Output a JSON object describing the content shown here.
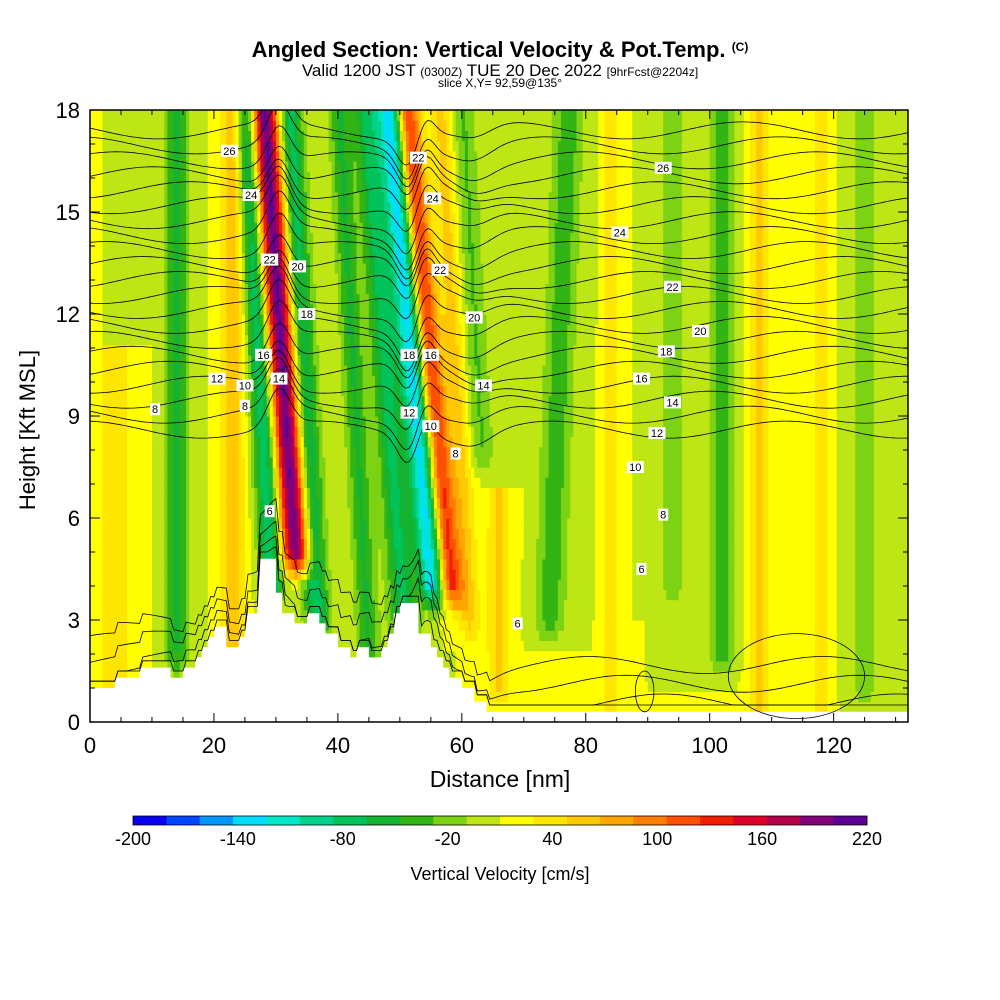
{
  "header": {
    "title": "Angled Section: Vertical Velocity & Pot.Temp.",
    "title_suffix": "(C)",
    "valid_a": "Valid 1200 JST",
    "valid_b": "(0300Z)",
    "valid_c": "TUE 20 Dec 2022",
    "valid_d": "[9hrFcst@2204z]",
    "slice": "slice X,Y= 92,59@135°"
  },
  "chart_data": {
    "type": "heatmap",
    "xlabel": "Distance [nm]",
    "ylabel": "Height [Kft MSL]",
    "xlim": [
      0,
      132
    ],
    "ylim": [
      0,
      18
    ],
    "x_ticks": [
      0,
      20,
      40,
      60,
      80,
      100,
      120
    ],
    "y_ticks": [
      0,
      3,
      6,
      9,
      12,
      15,
      18
    ],
    "grid": false,
    "background_field": {
      "name": "Vertical Velocity [cm/s]",
      "base_value_cm_s": 10,
      "updraft_bands": [
        {
          "x": 30.5,
          "half_width_nm": 2.3,
          "peak_cm_s": 200,
          "z_top_kft": 18,
          "z_bottom_kft": 5,
          "tilt_nm_per_kft": -0.4
        },
        {
          "x": 54.0,
          "half_width_nm": 2.0,
          "peak_cm_s": 150,
          "z_top_kft": 18,
          "z_bottom_kft": 4,
          "tilt_nm_per_kft": -0.5
        },
        {
          "x": 23.0,
          "half_width_nm": 1.8,
          "peak_cm_s": 55,
          "z_top_kft": 18,
          "z_bottom_kft": 2,
          "tilt_nm_per_kft": 0
        },
        {
          "x": 58.5,
          "half_width_nm": 1.8,
          "peak_cm_s": 45,
          "z_top_kft": 18,
          "z_bottom_kft": 3,
          "tilt_nm_per_kft": -0.3
        },
        {
          "x": 66.0,
          "half_width_nm": 2.0,
          "peak_cm_s": 40,
          "z_top_kft": 6,
          "z_bottom_kft": 1,
          "tilt_nm_per_kft": 0
        },
        {
          "x": 84.0,
          "half_width_nm": 1.0,
          "peak_cm_s": 35,
          "z_top_kft": 18,
          "z_bottom_kft": 0,
          "tilt_nm_per_kft": 0
        },
        {
          "x": 108.0,
          "half_width_nm": 1.6,
          "peak_cm_s": 40,
          "z_top_kft": 18,
          "z_bottom_kft": 0,
          "tilt_nm_per_kft": 0
        },
        {
          "x": 118.0,
          "half_width_nm": 1.2,
          "peak_cm_s": 35,
          "z_top_kft": 18,
          "z_bottom_kft": 0,
          "tilt_nm_per_kft": 0
        },
        {
          "x": 4.0,
          "half_width_nm": 3.0,
          "peak_cm_s": 30,
          "z_top_kft": 10,
          "z_bottom_kft": 1,
          "tilt_nm_per_kft": 0
        }
      ],
      "downdraft_bands": [
        {
          "x": 51.5,
          "half_width_nm": 2.3,
          "peak_cm_s": -160,
          "z_top_kft": 18,
          "z_bottom_kft": 4,
          "tilt_nm_per_kft": -0.5
        },
        {
          "x": 27.0,
          "half_width_nm": 1.8,
          "peak_cm_s": -100,
          "z_top_kft": 18,
          "z_bottom_kft": 4,
          "tilt_nm_per_kft": -0.3
        },
        {
          "x": 34.0,
          "half_width_nm": 2.0,
          "peak_cm_s": -90,
          "z_top_kft": 18,
          "z_bottom_kft": 3,
          "tilt_nm_per_kft": -0.3
        },
        {
          "x": 47.0,
          "half_width_nm": 2.2,
          "peak_cm_s": -80,
          "z_top_kft": 18,
          "z_bottom_kft": 2,
          "tilt_nm_per_kft": -0.4
        },
        {
          "x": 14.0,
          "half_width_nm": 2.0,
          "peak_cm_s": -60,
          "z_top_kft": 18,
          "z_bottom_kft": 2,
          "tilt_nm_per_kft": 0
        },
        {
          "x": 42.0,
          "half_width_nm": 1.8,
          "peak_cm_s": -60,
          "z_top_kft": 18,
          "z_bottom_kft": 2,
          "tilt_nm_per_kft": -0.3
        },
        {
          "x": 76.0,
          "half_width_nm": 2.5,
          "peak_cm_s": -50,
          "z_top_kft": 18,
          "z_bottom_kft": 3,
          "tilt_nm_per_kft": 0.2
        },
        {
          "x": 102.0,
          "half_width_nm": 2.2,
          "peak_cm_s": -50,
          "z_top_kft": 18,
          "z_bottom_kft": 2,
          "tilt_nm_per_kft": 0
        },
        {
          "x": 62.0,
          "half_width_nm": 2.0,
          "peak_cm_s": -40,
          "z_top_kft": 18,
          "z_bottom_kft": 8,
          "tilt_nm_per_kft": -0.3
        },
        {
          "x": 94.0,
          "half_width_nm": 2.0,
          "peak_cm_s": -35,
          "z_top_kft": 18,
          "z_bottom_kft": 4,
          "tilt_nm_per_kft": 0
        },
        {
          "x": 125.0,
          "half_width_nm": 2.0,
          "peak_cm_s": -30,
          "z_top_kft": 18,
          "z_bottom_kft": 1,
          "tilt_nm_per_kft": 0
        }
      ]
    },
    "isotherms_c": {
      "levels": [
        8,
        10,
        12,
        14,
        16,
        18,
        20,
        22,
        24,
        26
      ],
      "note": "sample potential temperature contours (every 1 C drawn, labeled every 2 C)",
      "labels": [
        {
          "text": "26",
          "x": 22.5,
          "y": 16.8
        },
        {
          "text": "26",
          "x": 92.5,
          "y": 16.3
        },
        {
          "text": "24",
          "x": 26.0,
          "y": 15.5
        },
        {
          "text": "24",
          "x": 55.3,
          "y": 15.4
        },
        {
          "text": "24",
          "x": 85.5,
          "y": 14.4
        },
        {
          "text": "22",
          "x": 29.0,
          "y": 13.6
        },
        {
          "text": "22",
          "x": 53.0,
          "y": 16.6
        },
        {
          "text": "22",
          "x": 56.5,
          "y": 13.3
        },
        {
          "text": "22",
          "x": 94.0,
          "y": 12.8
        },
        {
          "text": "20",
          "x": 33.5,
          "y": 13.4
        },
        {
          "text": "20",
          "x": 62.0,
          "y": 11.9
        },
        {
          "text": "20",
          "x": 98.5,
          "y": 11.5
        },
        {
          "text": "18",
          "x": 35.0,
          "y": 12.0
        },
        {
          "text": "18",
          "x": 51.5,
          "y": 10.8
        },
        {
          "text": "18",
          "x": 93.0,
          "y": 10.9
        },
        {
          "text": "16",
          "x": 28.0,
          "y": 10.8
        },
        {
          "text": "16",
          "x": 55.0,
          "y": 10.8
        },
        {
          "text": "16",
          "x": 89.0,
          "y": 10.1
        },
        {
          "text": "14",
          "x": 30.5,
          "y": 10.1
        },
        {
          "text": "14",
          "x": 63.5,
          "y": 9.9
        },
        {
          "text": "14",
          "x": 94.0,
          "y": 9.4
        },
        {
          "text": "12",
          "x": 20.5,
          "y": 10.1
        },
        {
          "text": "12",
          "x": 51.5,
          "y": 9.1
        },
        {
          "text": "12",
          "x": 91.5,
          "y": 8.5
        },
        {
          "text": "10",
          "x": 25.0,
          "y": 9.9
        },
        {
          "text": "10",
          "x": 55.0,
          "y": 8.7
        },
        {
          "text": "10",
          "x": 88.0,
          "y": 7.5
        },
        {
          "text": "8",
          "x": 10.5,
          "y": 9.2
        },
        {
          "text": "8",
          "x": 25.0,
          "y": 9.3
        },
        {
          "text": "8",
          "x": 59.0,
          "y": 7.9
        },
        {
          "text": "8",
          "x": 92.5,
          "y": 6.1
        },
        {
          "text": "6",
          "x": 29.0,
          "y": 6.2
        },
        {
          "text": "6",
          "x": 89.0,
          "y": 4.5
        },
        {
          "text": "6",
          "x": 69.0,
          "y": 2.9
        }
      ]
    },
    "terrain_kft": {
      "x": [
        0,
        4,
        4,
        8,
        8,
        13,
        13,
        15,
        15,
        17,
        17,
        18,
        18,
        19,
        19,
        20,
        20,
        22,
        22,
        24,
        24,
        25,
        25,
        27,
        27,
        28,
        28,
        30,
        30,
        31,
        31,
        33,
        33,
        35,
        35,
        37,
        37,
        38,
        38,
        40,
        40,
        42,
        42,
        43,
        43,
        45,
        45,
        47,
        47,
        48,
        48,
        49,
        49,
        50,
        50,
        53,
        53,
        55,
        55,
        56,
        56,
        57,
        57,
        58,
        58,
        60,
        60,
        62,
        62,
        64,
        64,
        66,
        66,
        68,
        68,
        70,
        70,
        132
      ],
      "z": [
        1.0,
        1.0,
        1.3,
        1.3,
        1.6,
        1.6,
        1.3,
        1.3,
        1.6,
        1.6,
        1.9,
        1.9,
        2.2,
        2.2,
        2.5,
        2.5,
        2.8,
        2.8,
        2.2,
        2.2,
        2.5,
        2.5,
        3.2,
        3.2,
        4.8,
        4.8,
        4.8,
        4.8,
        3.8,
        3.8,
        3.2,
        3.2,
        2.9,
        2.9,
        3.2,
        3.2,
        2.9,
        2.9,
        2.6,
        2.6,
        2.2,
        2.2,
        1.9,
        1.9,
        2.2,
        2.2,
        1.9,
        1.9,
        2.2,
        2.2,
        2.6,
        2.6,
        3.2,
        3.2,
        3.5,
        3.5,
        2.6,
        2.6,
        2.2,
        2.2,
        1.9,
        1.9,
        1.6,
        1.6,
        1.3,
        1.3,
        1.0,
        1.0,
        0.6,
        0.6,
        0.3,
        0.3,
        0.3,
        0.3,
        0.3,
        0.3,
        0.3,
        0.3
      ]
    },
    "colorbar": {
      "label": "Vertical Velocity [cm/s]",
      "bounds": [
        -200,
        220
      ],
      "tick_values": [
        -200,
        -140,
        -80,
        -20,
        40,
        100,
        160,
        220
      ],
      "tick_labels": [
        "-200",
        "-140",
        "-80",
        "-20",
        "40",
        "100",
        "160",
        "220"
      ],
      "colors": [
        "#0a00f0",
        "#0046ff",
        "#0096ff",
        "#00dcff",
        "#00e6c8",
        "#00d28c",
        "#00c35a",
        "#14b432",
        "#32b414",
        "#7dd214",
        "#bee614",
        "#ffff00",
        "#ffe600",
        "#ffc800",
        "#ffa500",
        "#ff7d00",
        "#ff5000",
        "#f01e00",
        "#dc0028",
        "#b4004b",
        "#820078",
        "#5a0096"
      ]
    }
  }
}
